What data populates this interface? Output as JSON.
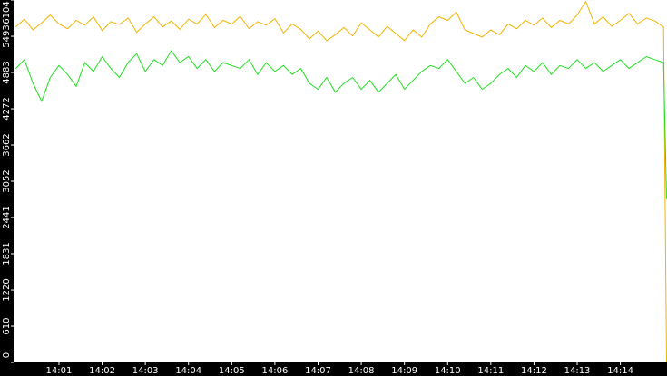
{
  "chart_data": {
    "type": "line",
    "x": [
      0,
      0.2,
      0.4,
      0.6,
      0.8,
      1,
      1.2,
      1.4,
      1.6,
      1.8,
      2,
      2.2,
      2.4,
      2.6,
      2.8,
      3,
      3.2,
      3.4,
      3.6,
      3.8,
      4,
      4.2,
      4.4,
      4.6,
      4.8,
      5,
      5.2,
      5.4,
      5.6,
      5.8,
      6,
      6.2,
      6.4,
      6.6,
      6.8,
      7,
      7.2,
      7.4,
      7.6,
      7.8,
      8,
      8.2,
      8.4,
      8.6,
      8.8,
      9,
      9.2,
      9.4,
      9.6,
      9.8,
      10,
      10.2,
      10.4,
      10.6,
      10.8,
      11,
      11.2,
      11.4,
      11.6,
      11.8,
      12,
      12.2,
      12.4,
      12.6,
      12.8,
      13,
      13.2,
      13.4,
      13.6,
      13.8,
      14,
      14.2,
      14.4,
      14.6,
      14.8,
      15,
      15.07
    ],
    "series": [
      {
        "color": "#f0b400",
        "values": [
          5650,
          5780,
          5600,
          5720,
          5850,
          5700,
          5620,
          5760,
          5680,
          5820,
          5590,
          5740,
          5690,
          5800,
          5560,
          5700,
          5820,
          5650,
          5750,
          5610,
          5780,
          5700,
          5860,
          5640,
          5760,
          5700,
          5830,
          5620,
          5740,
          5680,
          5790,
          5550,
          5700,
          5610,
          5450,
          5580,
          5420,
          5520,
          5640,
          5500,
          5720,
          5600,
          5480,
          5660,
          5540,
          5420,
          5600,
          5480,
          5700,
          5820,
          5760,
          5900,
          5600,
          5540,
          5480,
          5600,
          5520,
          5700,
          5620,
          5760,
          5680,
          5800,
          5640,
          5760,
          5700,
          5850,
          6080,
          5700,
          5820,
          5660,
          5760,
          5880,
          5700,
          5800,
          5750,
          5650,
          0
        ]
      },
      {
        "color": "#22dd22",
        "values": [
          4950,
          5100,
          4700,
          4400,
          4800,
          5000,
          4850,
          4650,
          5050,
          4900,
          5150,
          4950,
          4800,
          5050,
          5200,
          4900,
          5100,
          5000,
          5250,
          5050,
          5150,
          4950,
          5100,
          4900,
          5050,
          5000,
          4950,
          5100,
          4850,
          5050,
          4900,
          5000,
          4850,
          4950,
          4700,
          4600,
          4800,
          4550,
          4700,
          4800,
          4600,
          4750,
          4550,
          4700,
          4850,
          4600,
          4750,
          4900,
          5000,
          4950,
          5100,
          4900,
          4700,
          4800,
          4600,
          4700,
          4850,
          4950,
          4800,
          5000,
          4900,
          5050,
          4850,
          5000,
          4950,
          5100,
          4950,
          5050,
          4900,
          5000,
          5100,
          4950,
          5050,
          5150,
          5100,
          5050,
          2750
        ]
      }
    ],
    "xlim": [
      -0.05,
      15.08
    ],
    "xticks": [
      {
        "value": 1,
        "label": "14:01"
      },
      {
        "value": 2,
        "label": "14:02"
      },
      {
        "value": 3,
        "label": "14:03"
      },
      {
        "value": 4,
        "label": "14:04"
      },
      {
        "value": 5,
        "label": "14:05"
      },
      {
        "value": 6,
        "label": "14:06"
      },
      {
        "value": 7,
        "label": "14:07"
      },
      {
        "value": 8,
        "label": "14:08"
      },
      {
        "value": 9,
        "label": "14:09"
      },
      {
        "value": 10,
        "label": "14:10"
      },
      {
        "value": 11,
        "label": "14:11"
      },
      {
        "value": 12,
        "label": "14:12"
      },
      {
        "value": 13,
        "label": "14:13"
      },
      {
        "value": 14,
        "label": "14:14"
      }
    ],
    "ylim": [
      0,
      6104
    ],
    "yticks": [
      0,
      610,
      1220,
      1831,
      2441,
      3052,
      3662,
      4272,
      4883,
      5493,
      6104
    ]
  }
}
